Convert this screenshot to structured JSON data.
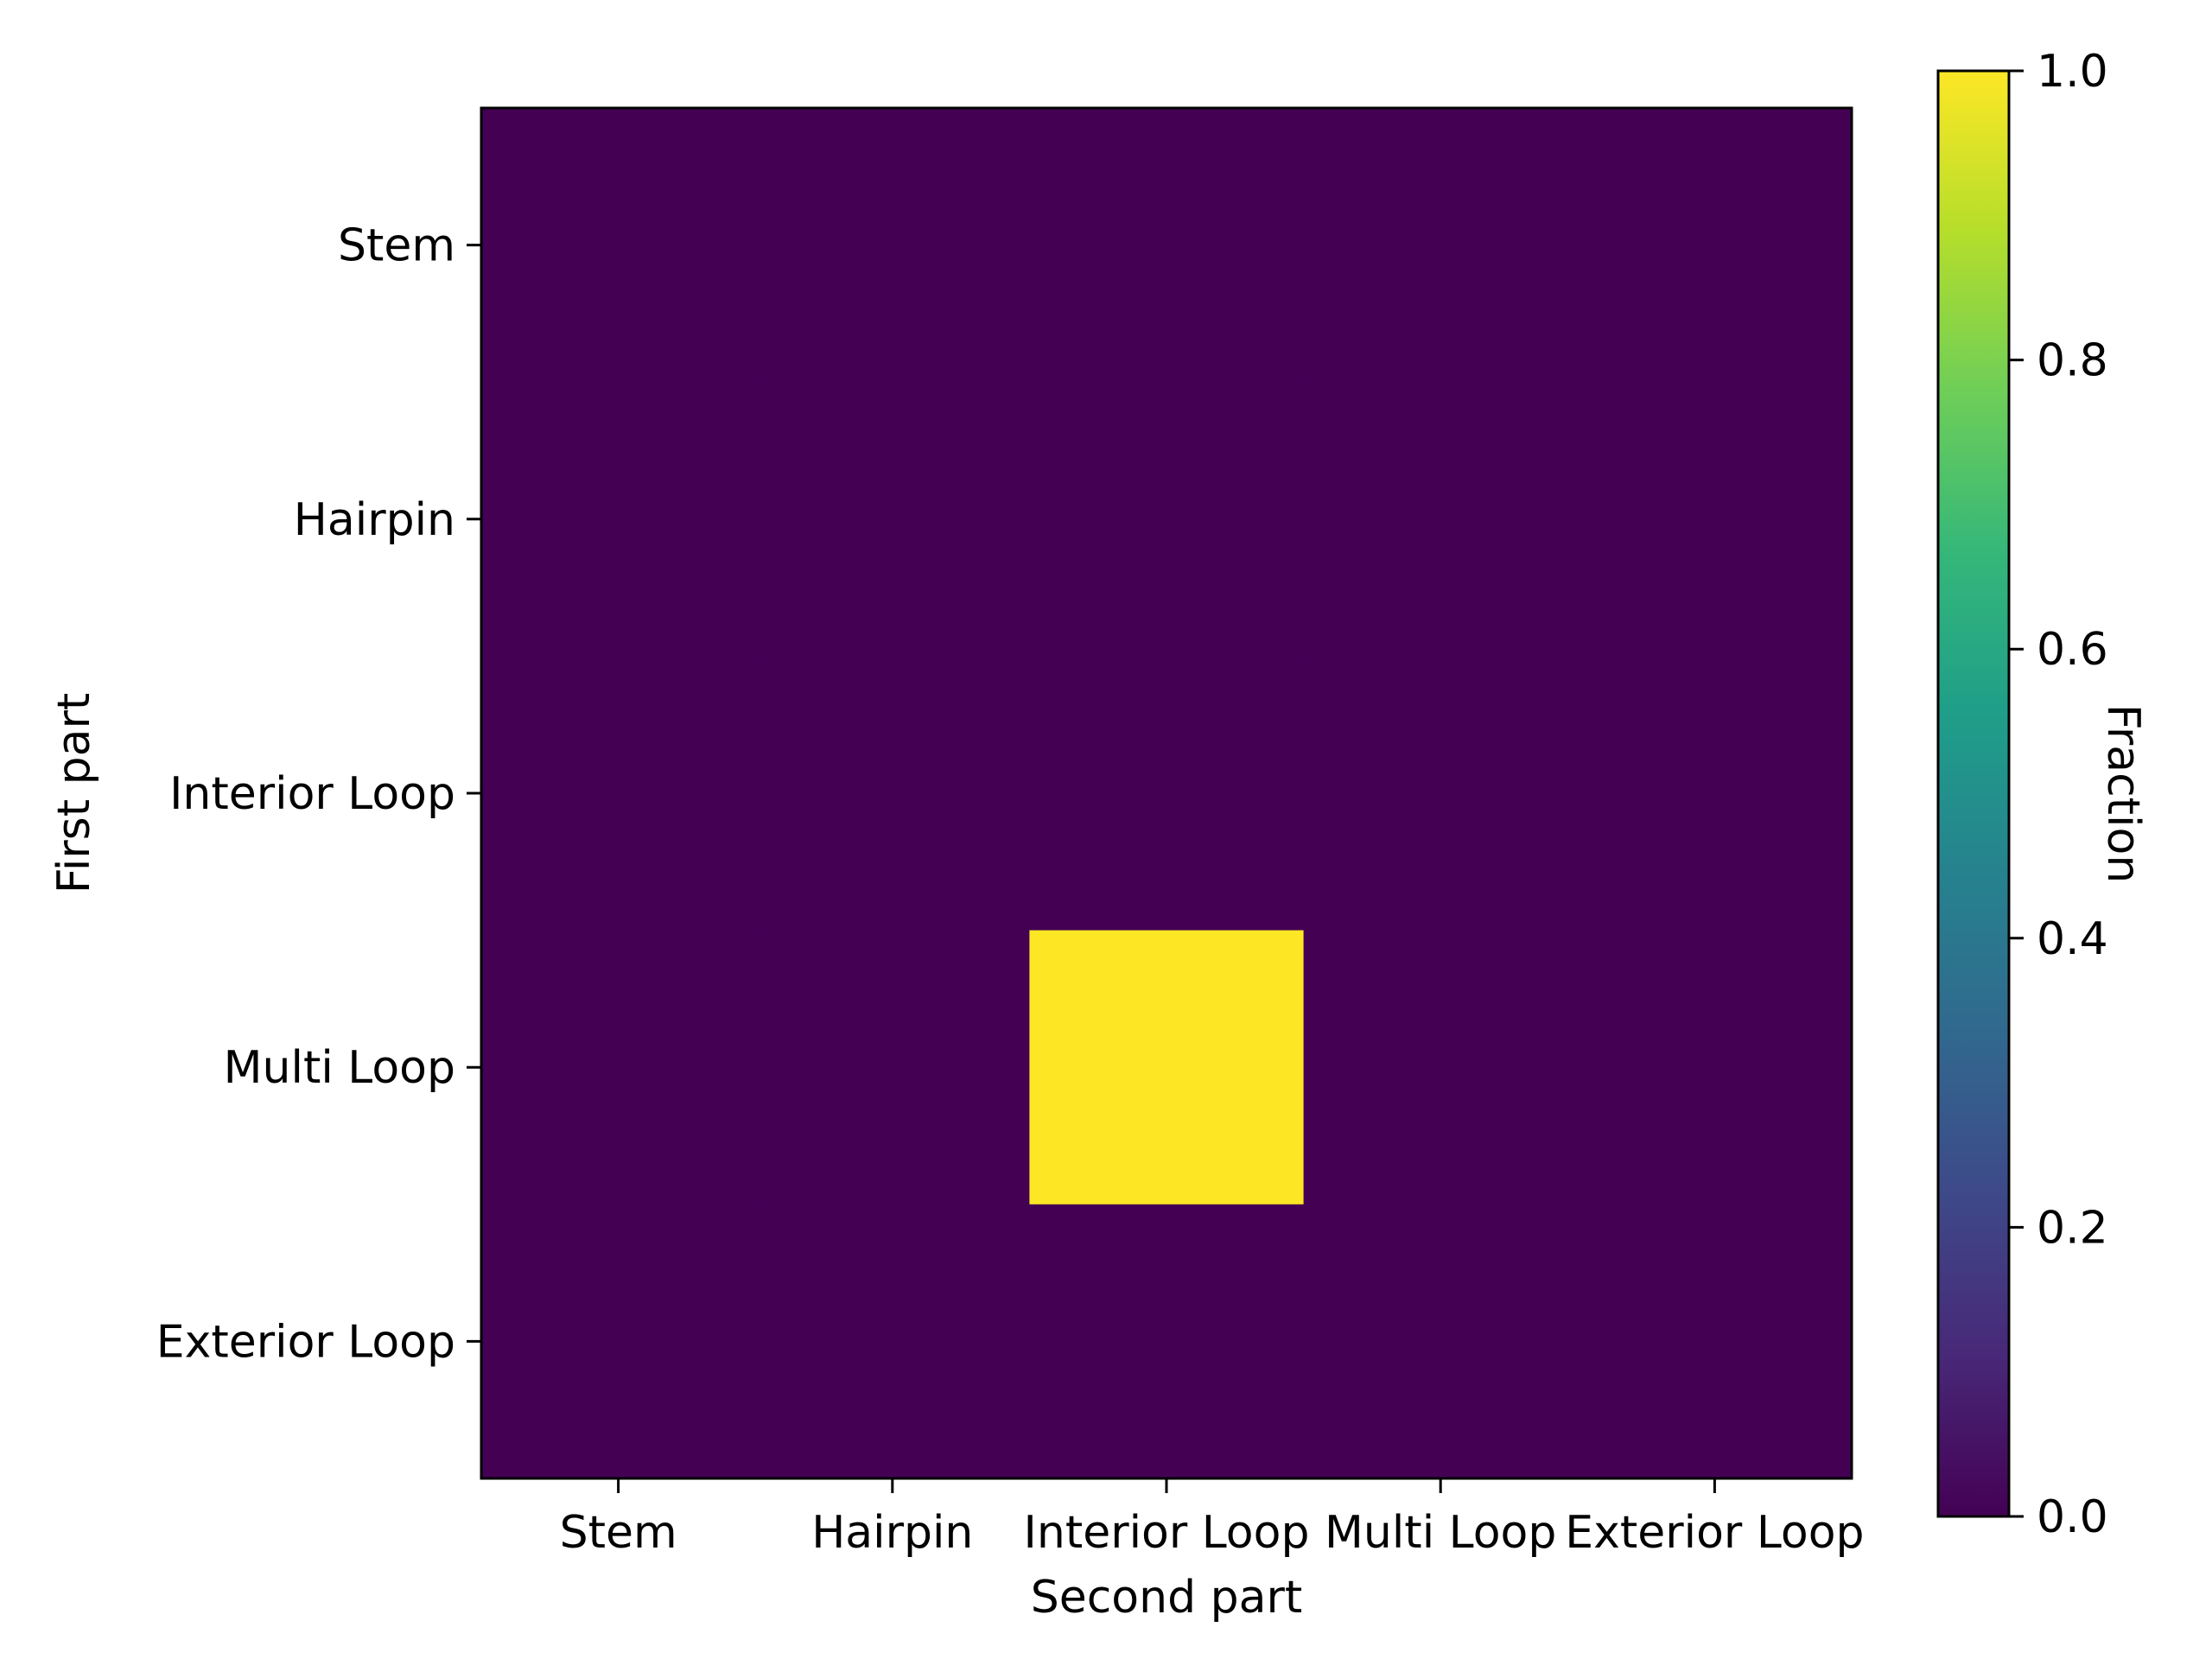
{
  "chart_data": {
    "type": "heatmap",
    "title": "",
    "xlabel": "Second part",
    "ylabel": "First part",
    "x_categories": [
      "Stem",
      "Hairpin",
      "Interior Loop",
      "Multi Loop",
      "Exterior Loop"
    ],
    "y_categories": [
      "Stem",
      "Hairpin",
      "Interior Loop",
      "Multi Loop",
      "Exterior Loop"
    ],
    "values": [
      [
        0,
        0,
        0,
        0,
        0
      ],
      [
        0,
        0,
        0,
        0,
        0
      ],
      [
        0,
        0,
        0,
        0,
        0
      ],
      [
        0,
        0,
        1,
        0,
        0
      ],
      [
        0,
        0,
        0,
        0,
        0
      ]
    ],
    "colormap": "viridis",
    "colormap_stops": [
      "#440154",
      "#482878",
      "#3e4989",
      "#31688e",
      "#26828e",
      "#1f9e89",
      "#35b779",
      "#6ece58",
      "#b5de2b",
      "#fde725"
    ],
    "colorbar": {
      "label": "Fraction",
      "range": [
        0,
        1
      ],
      "ticks": [
        0.0,
        0.2,
        0.4,
        0.6,
        0.8,
        1.0
      ],
      "tick_labels": [
        "0.0",
        "0.2",
        "0.4",
        "0.6",
        "0.8",
        "1.0"
      ]
    },
    "grid": false,
    "legend": "none"
  }
}
